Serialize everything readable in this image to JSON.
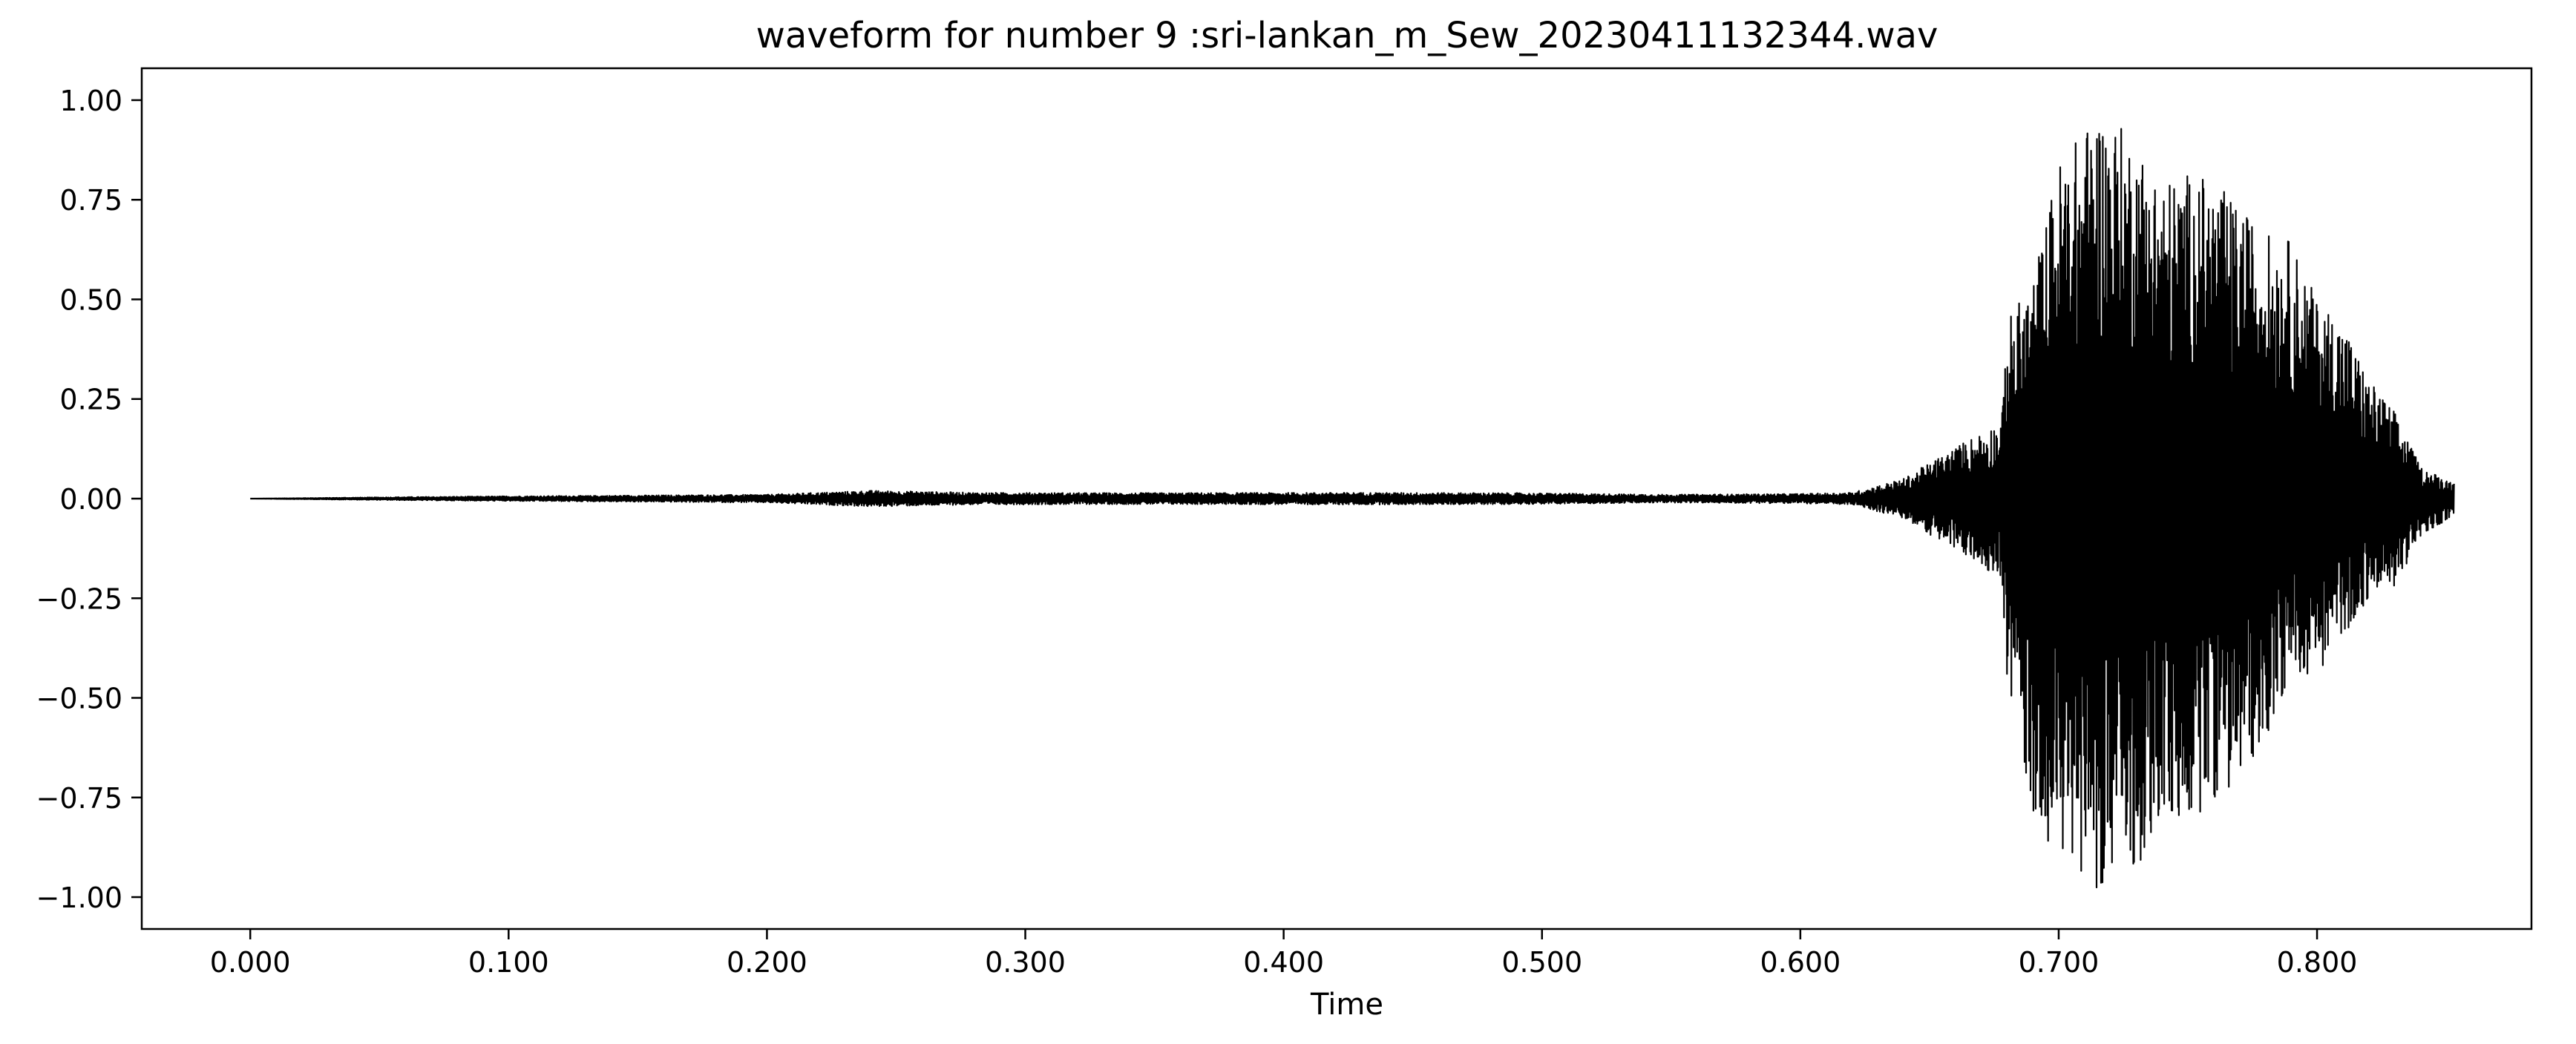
{
  "chart_data": {
    "type": "line",
    "title": "waveform for number 9 :sri-lankan_m_Sew_20230411132344.wav",
    "xlabel": "Time",
    "ylabel": "",
    "xlim": [
      -0.042,
      0.883
    ],
    "ylim": [
      -1.08,
      1.08
    ],
    "x_ticks": [
      0.0,
      0.1,
      0.2,
      0.3,
      0.4,
      0.5,
      0.6,
      0.7,
      0.8
    ],
    "x_tick_labels": [
      "0.000",
      "0.100",
      "0.200",
      "0.300",
      "0.400",
      "0.500",
      "0.600",
      "0.700",
      "0.800"
    ],
    "y_ticks": [
      1.0,
      0.75,
      0.5,
      0.25,
      0.0,
      -0.25,
      -0.5,
      -0.75,
      -1.0
    ],
    "y_tick_labels": [
      "1.00",
      "0.75",
      "0.50",
      "0.25",
      "0.00",
      "−0.25",
      "−0.50",
      "−0.75",
      "−1.00"
    ],
    "grid": false,
    "legend": "none",
    "line_color": "#000000",
    "duration": 0.853,
    "series": [
      {
        "envelope_x": [
          0.0,
          0.03,
          0.06,
          0.1,
          0.15,
          0.2,
          0.24,
          0.28,
          0.34,
          0.43,
          0.49,
          0.55,
          0.6,
          0.62,
          0.64,
          0.66,
          0.678,
          0.68,
          0.69,
          0.7,
          0.71,
          0.715,
          0.72,
          0.73,
          0.74,
          0.75,
          0.76,
          0.77,
          0.78,
          0.79,
          0.8,
          0.81,
          0.82,
          0.83,
          0.84,
          0.853
        ],
        "envelope_max": [
          0.0,
          0.002,
          0.004,
          0.006,
          0.008,
          0.01,
          0.02,
          0.015,
          0.014,
          0.015,
          0.014,
          0.01,
          0.012,
          0.015,
          0.05,
          0.13,
          0.2,
          0.45,
          0.55,
          0.85,
          0.93,
          0.98,
          0.96,
          0.9,
          0.8,
          0.82,
          0.8,
          0.73,
          0.67,
          0.65,
          0.5,
          0.45,
          0.3,
          0.22,
          0.08,
          0.04
        ],
        "envelope_min": [
          0.0,
          -0.002,
          -0.004,
          -0.006,
          -0.008,
          -0.01,
          -0.02,
          -0.015,
          -0.014,
          -0.015,
          -0.014,
          -0.01,
          -0.012,
          -0.015,
          -0.05,
          -0.13,
          -0.2,
          -0.45,
          -0.8,
          -0.9,
          -0.94,
          -0.98,
          -0.96,
          -0.93,
          -0.82,
          -0.83,
          -0.75,
          -0.72,
          -0.6,
          -0.45,
          -0.44,
          -0.35,
          -0.25,
          -0.22,
          -0.1,
          -0.04
        ]
      }
    ]
  }
}
